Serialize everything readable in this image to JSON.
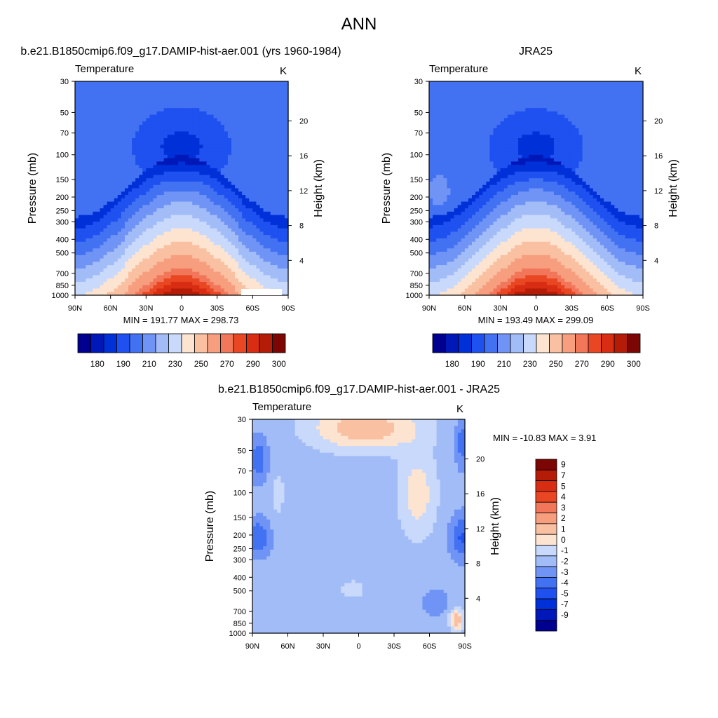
{
  "figure": {
    "title": "ANN"
  },
  "colors": {
    "temp_levels": [
      "#000090",
      "#0018b8",
      "#0030d8",
      "#1f50f0",
      "#4272f2",
      "#7094f5",
      "#a2bcf8",
      "#c8d9fb",
      "#fde4d1",
      "#f9c0a2",
      "#f79e7f",
      "#f2775a",
      "#e94623",
      "#d82d12",
      "#b41c08",
      "#7c0603"
    ],
    "diff_levels": [
      "#000090",
      "#0018b8",
      "#0030d8",
      "#1f50f0",
      "#4272f2",
      "#7094f5",
      "#a2bcf8",
      "#c8d9fb",
      "#fde4d1",
      "#f9c0a2",
      "#f79e7f",
      "#f2775a",
      "#e94623",
      "#d82d12",
      "#b41c08",
      "#7c0603"
    ],
    "mask": "#ffffff"
  },
  "chart_data": [
    {
      "id": "model",
      "type": "contour",
      "title": "b.e21.B1850cmip6.f09_g17.DAMIP-hist-aer.001 (yrs 1960-1984)",
      "left_label": "Temperature",
      "right_label": "K",
      "ylabel": "Pressure (mb)",
      "y2label": "Height (km)",
      "xticks": [
        "90N",
        "60N",
        "30N",
        "0",
        "30S",
        "60S",
        "90S"
      ],
      "xlim": [
        90,
        -90
      ],
      "yticks": [
        "30",
        "50",
        "70",
        "100",
        "150",
        "200",
        "250",
        "300",
        "400",
        "500",
        "700",
        "850",
        "1000"
      ],
      "ylim": [
        1000,
        30
      ],
      "y2ticks": [
        "4",
        "8",
        "12",
        "16",
        "20"
      ],
      "stats": "MIN = 191.77  MAX = 298.73",
      "min": 191.77,
      "max": 298.73,
      "colorbar_labels": [
        "180",
        "190",
        "210",
        "230",
        "250",
        "270",
        "290",
        "300"
      ]
    },
    {
      "id": "obs",
      "type": "contour",
      "title": "JRA25",
      "left_label": "Temperature",
      "right_label": "K",
      "ylabel": "Pressure (mb)",
      "y2label": "Height (km)",
      "xticks": [
        "90N",
        "60N",
        "30N",
        "0",
        "30S",
        "60S",
        "90S"
      ],
      "xlim": [
        90,
        -90
      ],
      "yticks": [
        "30",
        "50",
        "70",
        "100",
        "150",
        "200",
        "250",
        "300",
        "400",
        "500",
        "700",
        "850",
        "1000"
      ],
      "ylim": [
        1000,
        30
      ],
      "y2ticks": [
        "4",
        "8",
        "12",
        "16",
        "20"
      ],
      "stats": "MIN = 193.49  MAX = 299.09",
      "min": 193.49,
      "max": 299.09,
      "colorbar_labels": [
        "180",
        "190",
        "210",
        "230",
        "250",
        "270",
        "290",
        "300"
      ]
    },
    {
      "id": "diff",
      "type": "contour",
      "title": "b.e21.B1850cmip6.f09_g17.DAMIP-hist-aer.001 - JRA25",
      "left_label": "Temperature",
      "right_label": "K",
      "ylabel": "Pressure (mb)",
      "y2label": "Height (km)",
      "xticks": [
        "90N",
        "60N",
        "30N",
        "0",
        "30S",
        "60S",
        "90S"
      ],
      "xlim": [
        90,
        -90
      ],
      "yticks": [
        "30",
        "50",
        "70",
        "100",
        "150",
        "200",
        "250",
        "300",
        "400",
        "500",
        "700",
        "850",
        "1000"
      ],
      "ylim": [
        1000,
        30
      ],
      "y2ticks": [
        "4",
        "8",
        "12",
        "16",
        "20"
      ],
      "stats": "MIN = -10.83  MAX =   3.91",
      "min": -10.83,
      "max": 3.91,
      "colorbar_labels": [
        "9",
        "7",
        "5",
        "4",
        "3",
        "2",
        "1",
        "0",
        "-1",
        "-2",
        "-3",
        "-4",
        "-5",
        "-7",
        "-9"
      ]
    }
  ]
}
